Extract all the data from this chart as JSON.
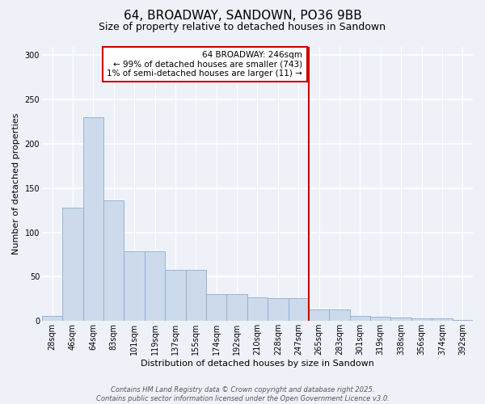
{
  "title": "64, BROADWAY, SANDOWN, PO36 9BB",
  "subtitle": "Size of property relative to detached houses in Sandown",
  "xlabel": "Distribution of detached houses by size in Sandown",
  "ylabel": "Number of detached properties",
  "footer_line1": "Contains HM Land Registry data © Crown copyright and database right 2025.",
  "footer_line2": "Contains public sector information licensed under the Open Government Licence v3.0.",
  "annotation_title": "64 BROADWAY: 246sqm",
  "annotation_line1": "← 99% of detached houses are smaller (743)",
  "annotation_line2": "1% of semi-detached houses are larger (11) →",
  "bar_labels": [
    "28sqm",
    "46sqm",
    "64sqm",
    "83sqm",
    "101sqm",
    "119sqm",
    "137sqm",
    "155sqm",
    "174sqm",
    "192sqm",
    "210sqm",
    "228sqm",
    "247sqm",
    "265sqm",
    "283sqm",
    "301sqm",
    "319sqm",
    "338sqm",
    "356sqm",
    "374sqm",
    "392sqm"
  ],
  "bar_values": [
    6,
    128,
    230,
    136,
    79,
    79,
    58,
    58,
    30,
    30,
    27,
    26,
    26,
    13,
    13,
    6,
    5,
    4,
    3,
    3,
    1
  ],
  "bar_color": "#cddaeb",
  "bar_edge_color": "#8aadd4",
  "marker_bar_index": 12,
  "marker_line_color": "#cc0000",
  "background_color": "#eef2f8",
  "plot_bg_color": "#eef2f8",
  "grid_color": "#ffffff",
  "ylim": [
    0,
    310
  ],
  "yticks": [
    0,
    50,
    100,
    150,
    200,
    250,
    300
  ],
  "title_fontsize": 11,
  "subtitle_fontsize": 9,
  "xlabel_fontsize": 8,
  "ylabel_fontsize": 8,
  "tick_fontsize": 7,
  "footer_fontsize": 6,
  "annotation_fontsize": 7.5
}
